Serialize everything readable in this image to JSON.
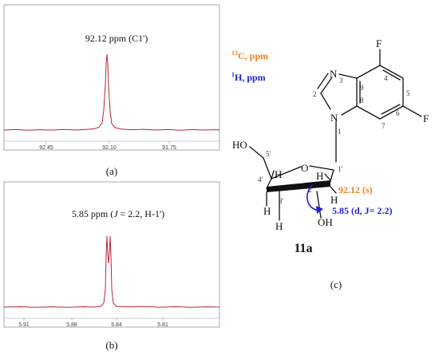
{
  "panel_a": {
    "peak_label": "92.12 ppm (C1')",
    "ticks": [
      "92.45",
      "92.10",
      "91.75"
    ],
    "tag": "(a)",
    "line_color": "#b5283a"
  },
  "panel_b": {
    "peak_label_prefix": "5.85 ppm (",
    "peak_label_j": "J",
    "peak_label_suffix": " = 2.2, H-1')",
    "ticks": [
      "5.91",
      "5.88",
      "5.84",
      "5.81"
    ],
    "tag": "(b)",
    "line_color": "#b5283a"
  },
  "legend": {
    "c13_sup": "13",
    "c13_text": "C, ppm",
    "h1_sup": "1",
    "h1_text": "H, ppm",
    "c13_color": "#f07f1c",
    "h1_color": "#1f1fd6"
  },
  "structure": {
    "compound_label": "11a",
    "tag": "(c)",
    "c1_shift": "92.12 (s)",
    "h1_shift": "5.85 (d, J= 2.2)",
    "atoms": {
      "F": "F",
      "N": "N",
      "O": "O",
      "H": "H",
      "HO": "HO",
      "OH": "OH"
    },
    "numbers": {
      "n3": "3",
      "n2": "2",
      "n1": "1",
      "n9": "9",
      "n8": "8",
      "n4": "4",
      "n5": "5",
      "n6": "6",
      "n7": "7",
      "p1": "1'",
      "p2": "2'",
      "p3": "3'",
      "p4": "4'",
      "p5": "5'"
    }
  }
}
